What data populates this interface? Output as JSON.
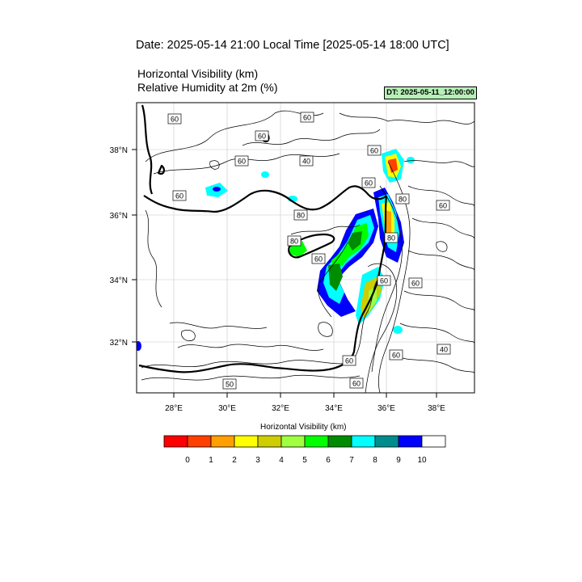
{
  "header": {
    "title": "Date: 2025-05-14  21:00 Local Time [2025-05-14  18:00 UTC]",
    "line1": "Horizontal Visibility   (km)",
    "line2": "Relative Humidity at 2m   (%)",
    "dt_badge": "DT: 2025-05-11_12:00:00"
  },
  "map": {
    "lon_ticks": [
      "28°E",
      "30°E",
      "32°E",
      "34°E",
      "36°E",
      "38°E"
    ],
    "lat_ticks": [
      "38°N",
      "36°N",
      "34°N",
      "32°N"
    ],
    "contour_labels": [
      "60",
      "60",
      "60",
      "60",
      "40",
      "60",
      "60",
      "60",
      "80",
      "60",
      "80",
      "80",
      "80",
      "60",
      "60",
      "60",
      "40",
      "60",
      "50",
      "60",
      "60"
    ]
  },
  "legend": {
    "title": "Horizontal Visibility  (km)",
    "colors": [
      "#ff0000",
      "#ff4000",
      "#ffa000",
      "#ffff00",
      "#cdcd00",
      "#a0ff40",
      "#00ff00",
      "#008c00",
      "#00ffff",
      "#008c8c",
      "#0000ff",
      "#ffffff"
    ],
    "labels": [
      "0",
      "1",
      "2",
      "3",
      "4",
      "5",
      "6",
      "7",
      "8",
      "9",
      "10"
    ]
  }
}
